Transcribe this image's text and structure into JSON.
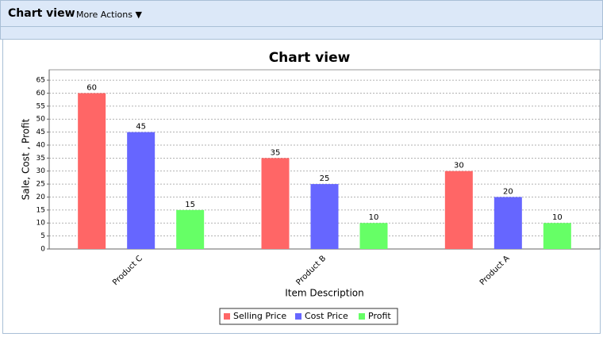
{
  "toolbar": {
    "title": "Chart view",
    "menu": "More Actions ▼"
  },
  "chart_data": {
    "type": "bar",
    "title": "Chart view",
    "x_label": "Item Description",
    "y_label": "Sale, Cost , Profit",
    "categories": [
      "Product C",
      "Product B",
      "Product A"
    ],
    "series": [
      {
        "name": "Selling Price",
        "color": "#ff6666",
        "values": [
          60,
          35,
          30
        ]
      },
      {
        "name": "Cost Price",
        "color": "#6666ff",
        "values": [
          45,
          25,
          20
        ]
      },
      {
        "name": "Profit",
        "color": "#66ff66",
        "values": [
          15,
          10,
          10
        ]
      }
    ],
    "ylim": [
      0,
      69
    ],
    "yticks": [
      0,
      5,
      10,
      15,
      20,
      25,
      30,
      35,
      40,
      45,
      50,
      55,
      60,
      65
    ],
    "grid": true,
    "legend": "bottom",
    "value_labels_shown": true
  }
}
